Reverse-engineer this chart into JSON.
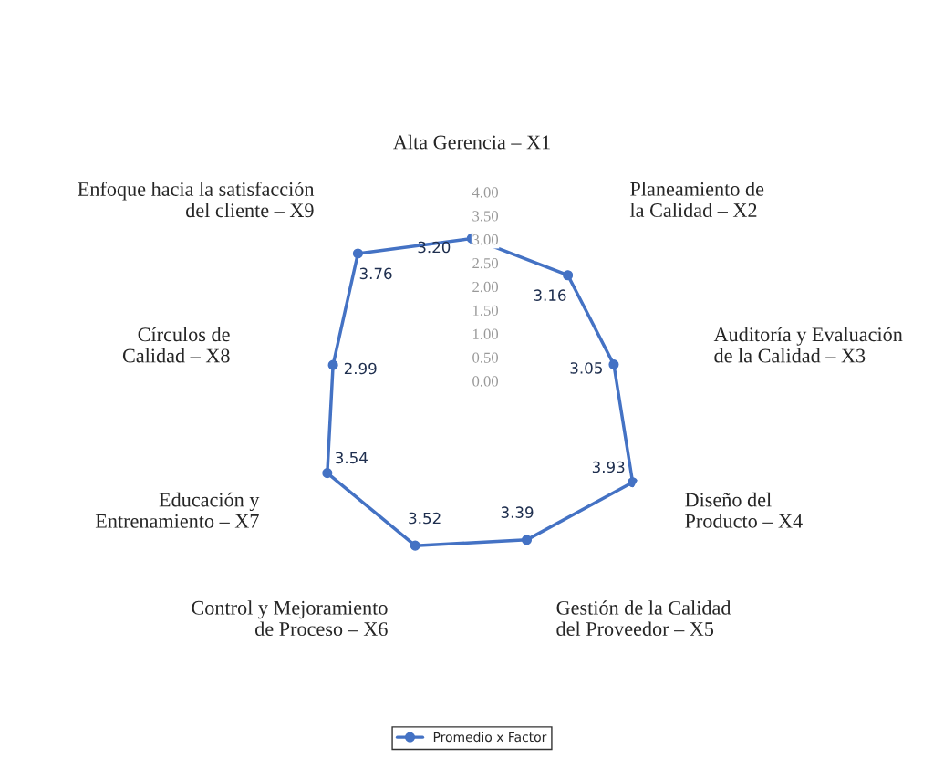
{
  "chart_data": {
    "type": "radar",
    "categories": [
      "Alta Gerencia – X1",
      "Planeamiento de la Calidad – X2",
      "Auditoría y Evaluación de la Calidad – X3",
      "Diseño del Producto – X4",
      "Gestión de la Calidad del Proveedor – X5",
      "Control y Mejoramiento de Proceso – X6",
      "Educación y Entrenamiento – X7",
      "Círculos de Calidad – X8",
      "Enfoque hacia la satisfacción del cliente – X9"
    ],
    "series": [
      {
        "name": "Promedio x Factor",
        "color": "#4472c4",
        "values": [
          3.2,
          3.16,
          3.05,
          3.93,
          3.39,
          3.52,
          3.54,
          2.99,
          3.76
        ],
        "value_labels": [
          "3.20",
          "3.16",
          "3.05",
          "3.93",
          "3.39",
          "3.52",
          "3.54",
          "2.99",
          "3.76"
        ]
      }
    ],
    "ylim": [
      0,
      4
    ],
    "yticks": [
      {
        "value": 0,
        "label": "0.00"
      },
      {
        "value": 0.5,
        "label": "0.50"
      },
      {
        "value": 1,
        "label": "1.00"
      },
      {
        "value": 1.5,
        "label": "1.50"
      },
      {
        "value": 2,
        "label": "2.00"
      },
      {
        "value": 2.5,
        "label": "2.50"
      },
      {
        "value": 3,
        "label": "3.00"
      },
      {
        "value": 3.5,
        "label": "3.50"
      },
      {
        "value": 4,
        "label": "4.00"
      }
    ],
    "marker": "circle",
    "legend": "bottom",
    "grid": false
  }
}
